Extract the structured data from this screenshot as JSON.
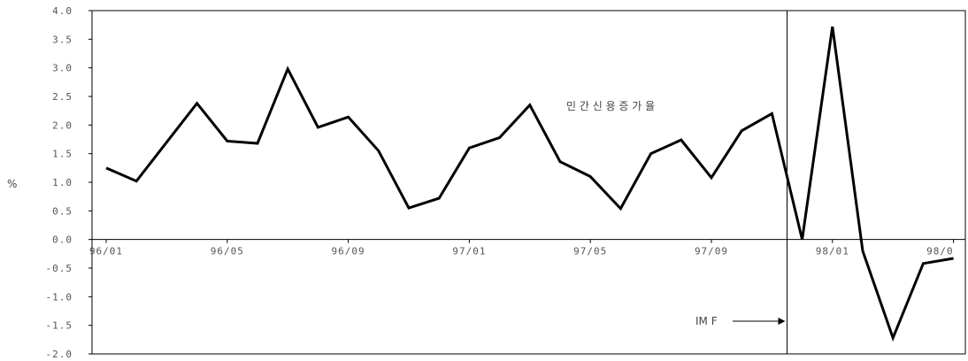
{
  "chart_data": {
    "type": "line",
    "title": "",
    "ylabel": "%",
    "xlabel": "",
    "ylim": [
      -2.0,
      4.0
    ],
    "yticks": [
      "4.0",
      "3.5",
      "3.0",
      "2.5",
      "2.0",
      "1.5",
      "1.0",
      "0.5",
      "0.0",
      "-0.5",
      "-1.0",
      "-1.5",
      "-2.0"
    ],
    "x_tick_labels": [
      "96/01",
      "96/05",
      "96/09",
      "97/01",
      "97/05",
      "97/09",
      "98/01",
      "98/0"
    ],
    "x": [
      "96/01",
      "96/02",
      "96/03",
      "96/04",
      "96/05",
      "96/06",
      "96/07",
      "96/08",
      "96/09",
      "96/10",
      "96/11",
      "96/12",
      "97/01",
      "97/02",
      "97/03",
      "97/04",
      "97/05",
      "97/06",
      "97/07",
      "97/08",
      "97/09",
      "97/10",
      "97/11",
      "97/12",
      "98/01",
      "98/02",
      "98/03",
      "98/04",
      "98/05"
    ],
    "series": [
      {
        "name": "민 간 신 용 증 가 율",
        "values": [
          1.25,
          1.02,
          1.7,
          2.38,
          1.72,
          1.68,
          2.98,
          1.96,
          2.14,
          1.55,
          0.55,
          0.72,
          1.6,
          1.78,
          2.35,
          1.36,
          1.1,
          0.54,
          1.5,
          1.74,
          1.08,
          1.9,
          2.2,
          0.0,
          3.72,
          -0.2,
          -1.72,
          -0.42,
          -0.33
        ]
      }
    ],
    "grid": false,
    "annotations": [
      {
        "text": "IM F",
        "at_x": "97/12",
        "kind": "vertical-line-arrow"
      }
    ]
  }
}
